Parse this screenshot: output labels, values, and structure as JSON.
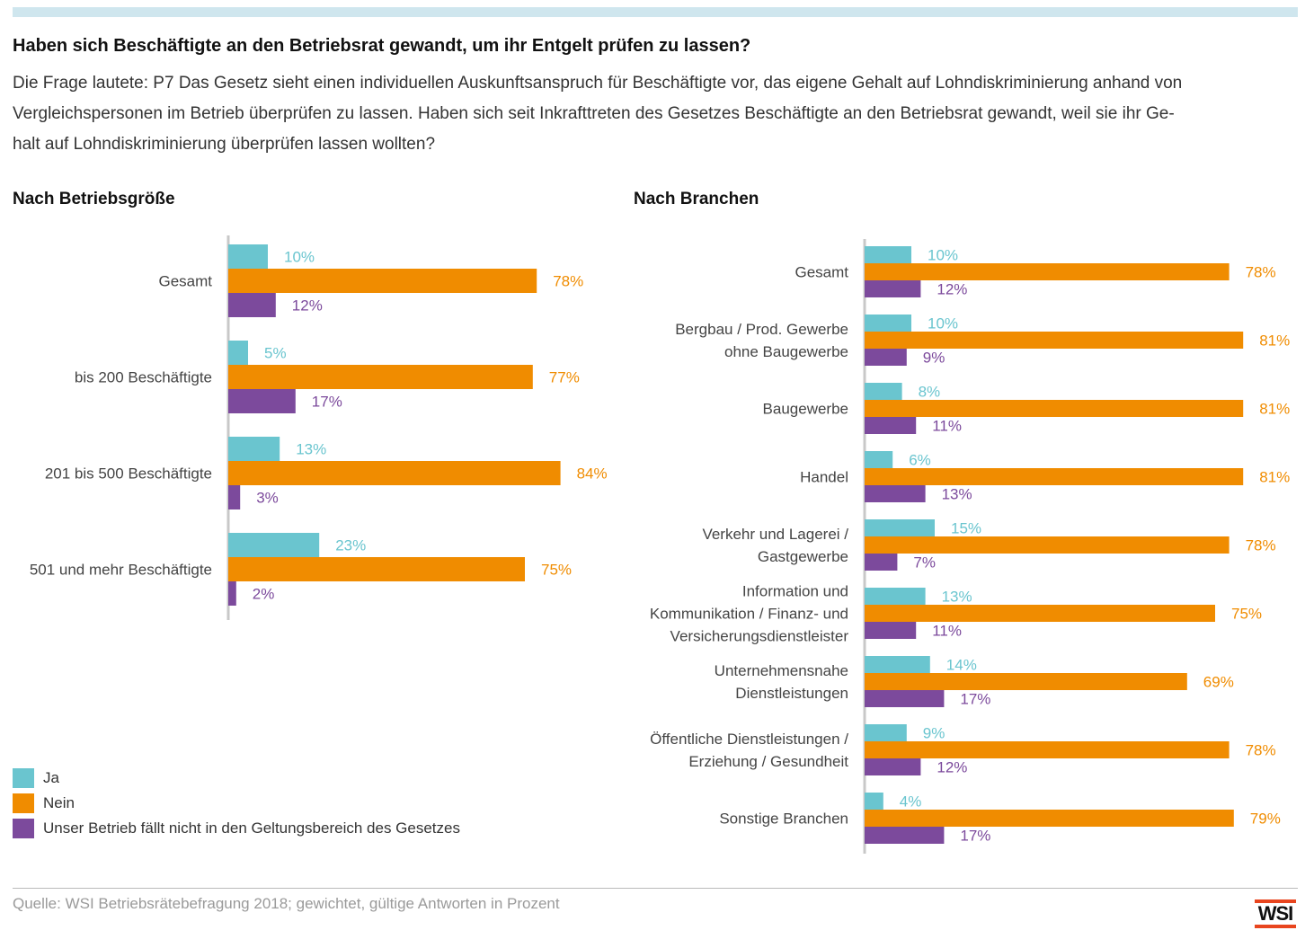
{
  "title": "Haben sich Beschäftigte an den Betriebsrat gewandt, um ihr Entgelt prüfen zu lassen?",
  "subtitle_lines": [
    "Die Frage lautete: P7 Das Gesetz sieht einen individuellen Auskunftsanspruch für Beschäftigte vor, das eigene Gehalt auf Lohndiskriminierung anhand von",
    "Vergleichspersonen im Betrieb überprüfen zu lassen. Haben sich seit Inkrafttreten des Gesetzes Beschäftigte an den Betriebsrat gewandt, weil sie ihr Ge-",
    "halt auf Lohndiskriminierung überprüfen lassen wollten?"
  ],
  "colors": {
    "ja": "#6ac5cf",
    "nein": "#f08c00",
    "nicht": "#7c4a9c",
    "axis": "#c8c8c8",
    "category_text": "#444444"
  },
  "legend": [
    {
      "key": "ja",
      "label": "Ja"
    },
    {
      "key": "nein",
      "label": "Nein"
    },
    {
      "key": "nicht",
      "label": "Unser Betrieb fällt nicht in den Geltungsbereich des Gesetzes"
    }
  ],
  "source": "Quelle: WSI Betriebsrätebefragung 2018; gewichtet, gültige Antworten in Prozent",
  "logo_text": "WSI",
  "chart_data": [
    {
      "type": "bar",
      "orientation": "horizontal",
      "title": "Nach Betriebsgröße",
      "categories": [
        [
          "Gesamt"
        ],
        [
          "bis 200 Beschäftigte"
        ],
        [
          "201 bis 500 Beschäftigte"
        ],
        [
          "501 und mehr Beschäftigte"
        ]
      ],
      "series": [
        {
          "key": "ja",
          "name": "Ja",
          "values": [
            10,
            5,
            13,
            23
          ]
        },
        {
          "key": "nein",
          "name": "Nein",
          "values": [
            78,
            77,
            84,
            75
          ]
        },
        {
          "key": "nicht",
          "name": "Unser Betrieb fällt nicht in den Geltungsbereich des Gesetzes",
          "values": [
            12,
            17,
            3,
            2
          ]
        }
      ],
      "value_suffix": "%",
      "xlim": [
        0,
        100
      ],
      "grid": false
    },
    {
      "type": "bar",
      "orientation": "horizontal",
      "title": "Nach Branchen",
      "categories": [
        [
          "Gesamt"
        ],
        [
          "Bergbau / Prod. Gewerbe",
          "ohne Baugewerbe"
        ],
        [
          "Baugewerbe"
        ],
        [
          "Handel"
        ],
        [
          "Verkehr und Lagerei /",
          "Gastgewerbe"
        ],
        [
          "Information und",
          "Kommunikation / Finanz- und",
          "Versicherungsdienstleister"
        ],
        [
          "Unternehmensnahe",
          "Dienstleistungen"
        ],
        [
          "Öffentliche Dienstleistungen /",
          "Erziehung / Gesundheit"
        ],
        [
          "Sonstige Branchen"
        ]
      ],
      "series": [
        {
          "key": "ja",
          "name": "Ja",
          "values": [
            10,
            10,
            8,
            6,
            15,
            13,
            14,
            9,
            4
          ]
        },
        {
          "key": "nein",
          "name": "Nein",
          "values": [
            78,
            81,
            81,
            81,
            78,
            75,
            69,
            78,
            79
          ]
        },
        {
          "key": "nicht",
          "name": "Unser Betrieb fällt nicht in den Geltungsbereich des Gesetzes",
          "values": [
            12,
            9,
            11,
            13,
            7,
            11,
            17,
            12,
            17
          ]
        }
      ],
      "value_suffix": "%",
      "xlim": [
        0,
        100
      ],
      "grid": false
    }
  ]
}
